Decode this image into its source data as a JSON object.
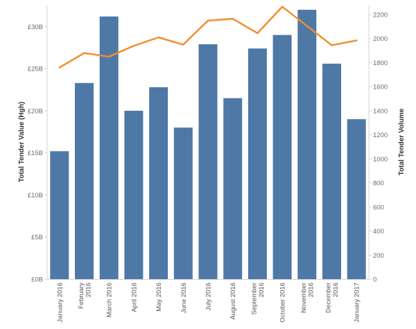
{
  "chart_data": {
    "type": "bar+line",
    "categories": [
      [
        "January 2016"
      ],
      [
        "February",
        "2016"
      ],
      [
        "March 2016"
      ],
      [
        "April 2016"
      ],
      [
        "May 2016"
      ],
      [
        "June 2016"
      ],
      [
        "July 2016"
      ],
      [
        "August 2016"
      ],
      [
        "September",
        "2016"
      ],
      [
        "October 2016"
      ],
      [
        "November",
        "2016"
      ],
      [
        "December",
        "2016"
      ],
      [
        "January 2017"
      ]
    ],
    "bar_series": {
      "axis": "left",
      "color": "#4e79a7",
      "values": [
        15.2,
        23.3,
        31.2,
        20.0,
        22.8,
        18.0,
        27.9,
        21.5,
        27.4,
        29.0,
        32.0,
        25.6,
        19.0
      ]
    },
    "line_series": {
      "axis": "right",
      "color": "#f28e2b",
      "values": [
        1760,
        1880,
        1850,
        1940,
        2010,
        1950,
        2150,
        2165,
        2045,
        2265,
        2105,
        1945,
        1985
      ]
    },
    "left_axis": {
      "label": "Total Tender Value (Hgh)",
      "range": [
        0,
        32.5
      ],
      "ticks": [
        0,
        5,
        10,
        15,
        20,
        25,
        30
      ],
      "tick_labels": [
        "£0B",
        "£5B",
        "£10B",
        "£15B",
        "£20B",
        "£25B",
        "£30B"
      ]
    },
    "right_axis": {
      "label": "Total Tender Volume",
      "range": [
        0,
        2275
      ],
      "ticks": [
        0,
        200,
        400,
        600,
        800,
        1000,
        1200,
        1400,
        1600,
        1800,
        2000,
        2200
      ],
      "tick_labels": [
        "0",
        "200",
        "400",
        "600",
        "800",
        "1000",
        "1200",
        "1400",
        "1600",
        "1800",
        "2000",
        "2200"
      ]
    },
    "grid": false
  }
}
